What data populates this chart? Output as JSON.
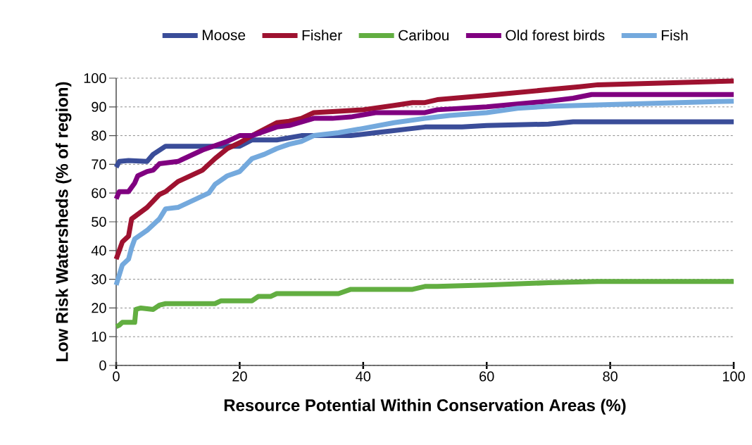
{
  "chart_data": {
    "type": "line",
    "xlabel": "Resource Potential Within Conservation Areas (%)",
    "ylabel": "Low Risk Watersheds (% of region)",
    "xlim": [
      0,
      100
    ],
    "xticks": [
      0,
      20,
      40,
      60,
      80,
      100
    ],
    "ylim": [
      0,
      100
    ],
    "yticks": [
      0,
      10,
      20,
      30,
      40,
      50,
      60,
      70,
      80,
      90,
      100
    ],
    "grid": "y",
    "legend": "top",
    "marker": "none",
    "line_style": "solid",
    "series": [
      {
        "name": "Moose",
        "color": "#3a4d99",
        "x": [
          0,
          0.5,
          2,
          5,
          6,
          8,
          20,
          22,
          26,
          30,
          38,
          42,
          50,
          56,
          60,
          70,
          74,
          100
        ],
        "values": [
          69,
          71,
          71.3,
          71,
          73.5,
          76.3,
          76.3,
          78.5,
          78.5,
          80,
          80,
          81,
          83,
          83,
          83.5,
          84,
          84.8,
          84.8
        ]
      },
      {
        "name": "Fisher",
        "color": "#9e1230",
        "x": [
          0,
          1,
          2,
          2.5,
          5,
          7,
          8,
          10,
          14,
          16,
          18,
          20,
          22,
          26,
          28,
          30,
          32,
          36,
          40,
          45,
          48,
          50,
          52,
          60,
          70,
          75,
          78,
          100
        ],
        "values": [
          37,
          43,
          45,
          51,
          55,
          59.5,
          60.5,
          64,
          68,
          72,
          75.5,
          77.5,
          80,
          84.5,
          85,
          86,
          88,
          88.5,
          89,
          90.5,
          91.5,
          91.5,
          92.5,
          94,
          96,
          97,
          97.7,
          99
        ]
      },
      {
        "name": "Caribou",
        "color": "#62ae41",
        "x": [
          0,
          0.5,
          1,
          3,
          3.2,
          4,
          6,
          7,
          8,
          16,
          17,
          22,
          23,
          25,
          26,
          36,
          38,
          48,
          50,
          52,
          60,
          70,
          78,
          100
        ],
        "values": [
          13.5,
          14,
          15,
          15,
          19.5,
          20,
          19.5,
          21,
          21.5,
          21.5,
          22.5,
          22.5,
          24,
          24,
          25,
          25,
          26.5,
          26.5,
          27.5,
          27.5,
          28,
          28.8,
          29.2,
          29.2
        ]
      },
      {
        "name": "Old forest birds",
        "color": "#800080",
        "x": [
          0,
          0.5,
          2,
          3,
          3.5,
          5,
          6,
          7,
          10,
          14,
          18,
          20,
          22,
          26,
          28,
          32,
          35,
          38,
          42,
          50,
          52,
          60,
          70,
          74,
          77,
          100
        ],
        "values": [
          58,
          60.5,
          60.5,
          63.5,
          66,
          67.5,
          68,
          70.2,
          71,
          75,
          78,
          80,
          80,
          83,
          83.5,
          86,
          86,
          86.5,
          88,
          88,
          89,
          90,
          92,
          93,
          94.3,
          94.3
        ]
      },
      {
        "name": "Fish",
        "color": "#74a9dd",
        "x": [
          0,
          1,
          2,
          2.5,
          3,
          5,
          7,
          8,
          10,
          15,
          16,
          18,
          20,
          22,
          24,
          26,
          28,
          30,
          32,
          36,
          40,
          45,
          50,
          52,
          54,
          60,
          65,
          70,
          80,
          100
        ],
        "values": [
          28,
          35,
          37,
          41,
          44,
          47,
          51,
          54.5,
          55,
          60,
          63,
          66,
          67.5,
          72,
          73.5,
          75.5,
          77,
          78,
          80,
          81,
          82.5,
          84.5,
          86,
          86.5,
          87,
          88,
          89.5,
          90.2,
          90.8,
          92
        ]
      }
    ]
  }
}
